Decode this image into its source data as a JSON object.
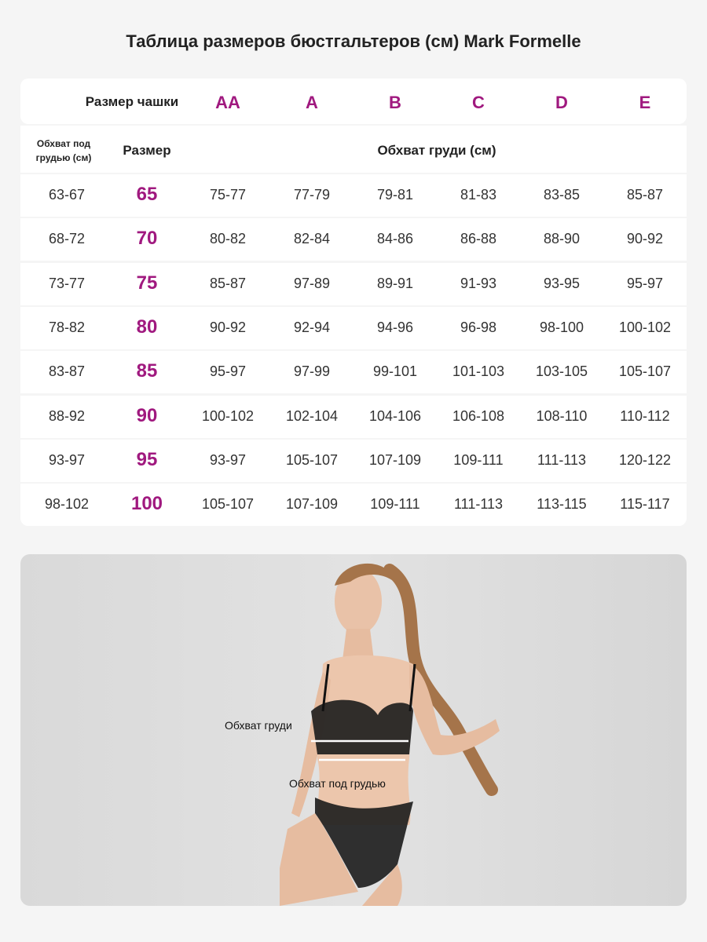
{
  "title": "Таблица размеров бюстгальтеров (см) Mark Formelle",
  "table": {
    "cup_label": "Размер чашки",
    "cups": [
      "AA",
      "A",
      "B",
      "C",
      "D",
      "E"
    ],
    "underbust_header": "Обхват под грудью (см)",
    "size_header": "Размер",
    "bust_header": "Обхват груди (см)",
    "rows": [
      {
        "underbust": "63-67",
        "size": "65",
        "bust": [
          "75-77",
          "77-79",
          "79-81",
          "81-83",
          "83-85",
          "85-87"
        ]
      },
      {
        "underbust": "68-72",
        "size": "70",
        "bust": [
          "80-82",
          "82-84",
          "84-86",
          "86-88",
          "88-90",
          "90-92"
        ]
      },
      {
        "underbust": "73-77",
        "size": "75",
        "bust": [
          "85-87",
          "97-89",
          "89-91",
          "91-93",
          "93-95",
          "95-97"
        ]
      },
      {
        "underbust": "78-82",
        "size": "80",
        "bust": [
          "90-92",
          "92-94",
          "94-96",
          "96-98",
          "98-100",
          "100-102"
        ]
      },
      {
        "underbust": "83-87",
        "size": "85",
        "bust": [
          "95-97",
          "97-99",
          "99-101",
          "101-103",
          "103-105",
          "105-107"
        ]
      },
      {
        "underbust": "88-92",
        "size": "90",
        "bust": [
          "100-102",
          "102-104",
          "104-106",
          "106-108",
          "108-110",
          "110-112"
        ]
      },
      {
        "underbust": "93-97",
        "size": "95",
        "bust": [
          "93-97",
          "105-107",
          "107-109",
          "109-111",
          "111-113",
          "120-122"
        ]
      },
      {
        "underbust": "98-102",
        "size": "100",
        "bust": [
          "105-107",
          "107-109",
          "109-111",
          "111-113",
          "113-115",
          "115-117"
        ]
      }
    ]
  },
  "photo": {
    "bust_label": "Обхват груди",
    "underbust_label": "Обхват под грудью"
  },
  "colors": {
    "accent": "#a0197f",
    "background": "#f5f5f5"
  }
}
